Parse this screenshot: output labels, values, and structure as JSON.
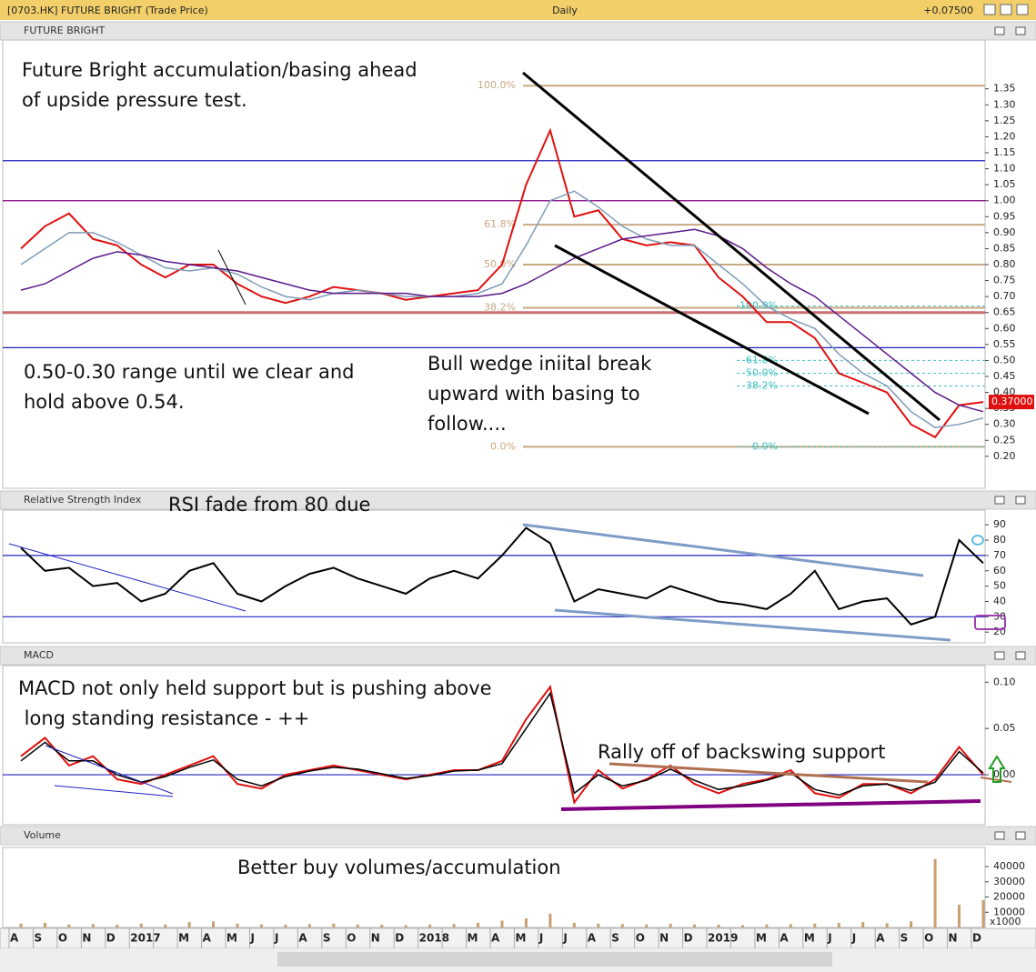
{
  "window": {
    "title": "[0703.HK] FUTURE BRIGHT (Trade Price)",
    "interval": "Daily",
    "change": "+0.07500"
  },
  "chart_data": [
    {
      "type": "line",
      "title": "FUTURE BRIGHT",
      "ylim": [
        0.1,
        1.5
      ],
      "yticks": [
        {
          "value": 0.2,
          "label": "0.20"
        },
        0.25,
        {
          "value": 0.3,
          "label": "0.30"
        },
        0.35,
        {
          "value": 0.4,
          "label": "0.40"
        },
        0.45,
        {
          "value": 0.5,
          "label": "0.50"
        },
        0.55,
        {
          "value": 0.6,
          "label": "0.60"
        },
        0.65,
        {
          "value": 0.7,
          "label": "0.70"
        },
        0.75,
        {
          "value": 0.8,
          "label": "0.80"
        },
        0.85,
        {
          "value": 0.9,
          "label": "0.90"
        },
        0.95,
        {
          "value": 1.0,
          "label": "1.00"
        },
        1.05,
        {
          "value": 1.1,
          "label": "1.10"
        },
        1.15,
        {
          "value": 1.2,
          "label": "1.20"
        },
        1.25,
        {
          "value": 1.3,
          "label": "1.30"
        },
        1.35
      ],
      "hlines": [
        {
          "value": 1.125,
          "color": "#2020c0"
        },
        {
          "value": 1.0,
          "color": "#800080"
        },
        {
          "value": 0.65,
          "color": "#c87070"
        },
        {
          "value": 0.54,
          "color": "#2020c0"
        }
      ],
      "fib": [
        {
          "color": "#c8a882",
          "levels": [
            {
              "label": "100.0%",
              "value": 1.36
            },
            {
              "label": "61.8%",
              "value": 0.925
            },
            {
              "label": "50.0%",
              "value": 0.8
            },
            {
              "label": "38.2%",
              "value": 0.665
            },
            {
              "label": "0.0%",
              "value": 0.23
            }
          ]
        },
        {
          "color": "#40c0c0",
          "levels": [
            {
              "label": "100.0%",
              "value": 0.67
            },
            {
              "label": "61.8%",
              "value": 0.5
            },
            {
              "label": "50.0%",
              "value": 0.46
            },
            {
              "label": "38.2%",
              "value": 0.42
            },
            {
              "label": "0.0%",
              "value": 0.23
            }
          ]
        }
      ],
      "last": {
        "value": 0.37,
        "label": "0.37000"
      },
      "annotations": [
        {
          "lines": [
            "Future Bright accumulation/basing ahead",
            "of upside pressure test."
          ]
        },
        {
          "lines": [
            "0.50-0.30 range until we clear and",
            "hold above 0.54."
          ]
        },
        {
          "lines": [
            "Bull wedge iniital break",
            "upward with basing to",
            "follow...."
          ]
        }
      ],
      "series": [
        {
          "color": "#e01010",
          "values": [
            0.85,
            0.92,
            0.96,
            0.88,
            0.86,
            0.8,
            0.76,
            0.8,
            0.8,
            0.74,
            0.7,
            0.68,
            0.7,
            0.73,
            0.72,
            0.71,
            0.69,
            0.7,
            0.71,
            0.72,
            0.8,
            1.05,
            1.22,
            0.95,
            0.97,
            0.88,
            0.86,
            0.87,
            0.86,
            0.76,
            0.7,
            0.62,
            0.62,
            0.57,
            0.46,
            0.43,
            0.4,
            0.3,
            0.26,
            0.36,
            0.37
          ]
        },
        {
          "color": "#7f9cb8",
          "values": [
            0.8,
            0.85,
            0.9,
            0.9,
            0.87,
            0.83,
            0.79,
            0.78,
            0.79,
            0.77,
            0.73,
            0.7,
            0.69,
            0.71,
            0.72,
            0.71,
            0.7,
            0.7,
            0.7,
            0.71,
            0.74,
            0.86,
            1.0,
            1.03,
            0.98,
            0.92,
            0.88,
            0.86,
            0.86,
            0.8,
            0.74,
            0.67,
            0.63,
            0.6,
            0.52,
            0.46,
            0.42,
            0.34,
            0.29,
            0.3,
            0.32
          ]
        },
        {
          "color": "#5a1a8a",
          "values": [
            0.72,
            0.74,
            0.78,
            0.82,
            0.84,
            0.83,
            0.81,
            0.8,
            0.79,
            0.78,
            0.76,
            0.74,
            0.72,
            0.71,
            0.71,
            0.71,
            0.71,
            0.7,
            0.7,
            0.7,
            0.71,
            0.74,
            0.78,
            0.82,
            0.85,
            0.88,
            0.89,
            0.9,
            0.91,
            0.89,
            0.85,
            0.79,
            0.74,
            0.7,
            0.64,
            0.58,
            0.52,
            0.46,
            0.4,
            0.36,
            0.34
          ]
        }
      ]
    },
    {
      "type": "line",
      "title": "Relative Strength Index",
      "ylim": [
        13,
        99
      ],
      "yticks": [
        20,
        30,
        40,
        50,
        60,
        70,
        80,
        90
      ],
      "hlines": [
        {
          "value": 70,
          "color": "#2020c0"
        },
        {
          "value": 30,
          "color": "#2020c0"
        }
      ],
      "annotations": [
        {
          "lines": [
            "RSI fade from 80 due"
          ]
        }
      ],
      "series": [
        {
          "color": "#000000",
          "values": [
            75,
            60,
            62,
            50,
            52,
            40,
            45,
            60,
            65,
            45,
            40,
            50,
            58,
            62,
            55,
            50,
            45,
            55,
            60,
            55,
            70,
            88,
            78,
            40,
            48,
            45,
            42,
            50,
            45,
            40,
            38,
            35,
            45,
            60,
            35,
            40,
            42,
            25,
            30,
            80,
            65
          ]
        }
      ]
    },
    {
      "type": "line",
      "title": "MACD",
      "ylim": [
        -0.054,
        0.117
      ],
      "yticks": [
        {
          "value": 0.0,
          "label": "0.00"
        },
        0.05,
        {
          "value": 0.1,
          "label": "0.10"
        }
      ],
      "hlines": [
        {
          "value": 0,
          "color": "#2020c0"
        }
      ],
      "annotations": [
        {
          "lines": [
            "MACD not only held support but is pushing above",
            " long standing resistance - ++"
          ]
        },
        {
          "lines": [
            "Rally off of backswing support"
          ],
          "color": "#b07050"
        }
      ],
      "series": [
        {
          "color": "#e01010",
          "values": [
            0.02,
            0.04,
            0.01,
            0.02,
            -0.005,
            -0.01,
            0.0,
            0.01,
            0.02,
            -0.01,
            -0.015,
            0.0,
            0.005,
            0.01,
            0.005,
            0.0,
            -0.005,
            0.0,
            0.005,
            0.005,
            0.015,
            0.06,
            0.095,
            -0.03,
            0.005,
            -0.015,
            -0.005,
            0.01,
            -0.01,
            -0.02,
            -0.01,
            -0.005,
            0.005,
            -0.02,
            -0.025,
            -0.01,
            -0.01,
            -0.02,
            -0.005,
            0.03,
            0.0
          ]
        },
        {
          "color": "#000000",
          "values": [
            0.015,
            0.035,
            0.015,
            0.015,
            0.0,
            -0.008,
            -0.002,
            0.008,
            0.016,
            -0.005,
            -0.012,
            -0.002,
            0.004,
            0.008,
            0.006,
            0.001,
            -0.004,
            -0.001,
            0.004,
            0.005,
            0.012,
            0.05,
            0.088,
            -0.02,
            0.0,
            -0.012,
            -0.006,
            0.006,
            -0.006,
            -0.016,
            -0.012,
            -0.006,
            0.002,
            -0.016,
            -0.022,
            -0.012,
            -0.01,
            -0.017,
            -0.008,
            0.025,
            0.002
          ]
        }
      ]
    },
    {
      "type": "bar",
      "title": "Volume",
      "ylim": [
        0,
        52000
      ],
      "yticks": [
        10000,
        20000,
        30000,
        40000
      ],
      "unit": "x1000",
      "color": "#c8a070",
      "annotations": [
        {
          "lines": [
            "Better buy volumes/accumulation"
          ]
        }
      ],
      "categories": [
        "A",
        "S",
        "O",
        "N",
        "D",
        "2017",
        null,
        "M",
        "A",
        "M",
        "J",
        "J",
        "A",
        "S",
        "O",
        "N",
        "D",
        "2018",
        null,
        "M",
        "A",
        "M",
        "J",
        "J",
        "A",
        "S",
        "O",
        "N",
        "D",
        "2019",
        null,
        "M",
        "A",
        "M",
        "J",
        "J",
        "A",
        "S",
        "O",
        "N",
        "D"
      ],
      "values": [
        2500,
        3000,
        2000,
        2200,
        1800,
        2500,
        2000,
        3500,
        4000,
        2500,
        2000,
        1800,
        2200,
        2500,
        2000,
        1800,
        1500,
        2000,
        2200,
        3000,
        4500,
        6000,
        9000,
        3000,
        2500,
        2200,
        2000,
        2500,
        2000,
        1800,
        1500,
        2000,
        2200,
        2500,
        3000,
        3500,
        2800,
        4000,
        45000,
        15000,
        18000
      ]
    }
  ]
}
